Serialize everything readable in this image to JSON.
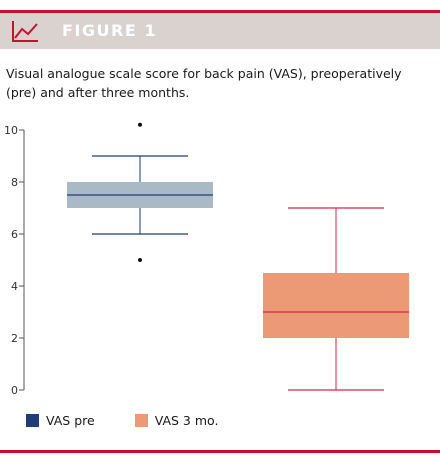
{
  "header": {
    "figure_label": "FIGURE 1",
    "icon": "line-chart-icon",
    "banner_color": "#d9d2cf",
    "accent_color": "#c8102e"
  },
  "caption": "Visual analogue scale score for back pain (VAS), preoperatively (pre) and after three months.",
  "chart_data": {
    "type": "box",
    "title": "",
    "xlabel": "",
    "ylabel": "",
    "ylim": [
      0,
      10
    ],
    "yticks": [
      0,
      2,
      4,
      6,
      8,
      10
    ],
    "grid": false,
    "legend_position": "bottom-left",
    "series": [
      {
        "name": "VAS pre",
        "color_fill": "#a9bac6",
        "color_line": "#1f3d78",
        "legend_color": "#1f3d78",
        "whisker_low": 6,
        "q1": 7,
        "median": 7.5,
        "q3": 8,
        "whisker_high": 9,
        "outliers": [
          5,
          10.2
        ]
      },
      {
        "name": "VAS 3 mo.",
        "color_fill": "#ec9a76",
        "color_line": "#d7264a",
        "legend_color": "#ec9a76",
        "whisker_low": 0,
        "q1": 2,
        "median": 3,
        "q3": 4.5,
        "whisker_high": 7,
        "outliers": []
      }
    ]
  }
}
